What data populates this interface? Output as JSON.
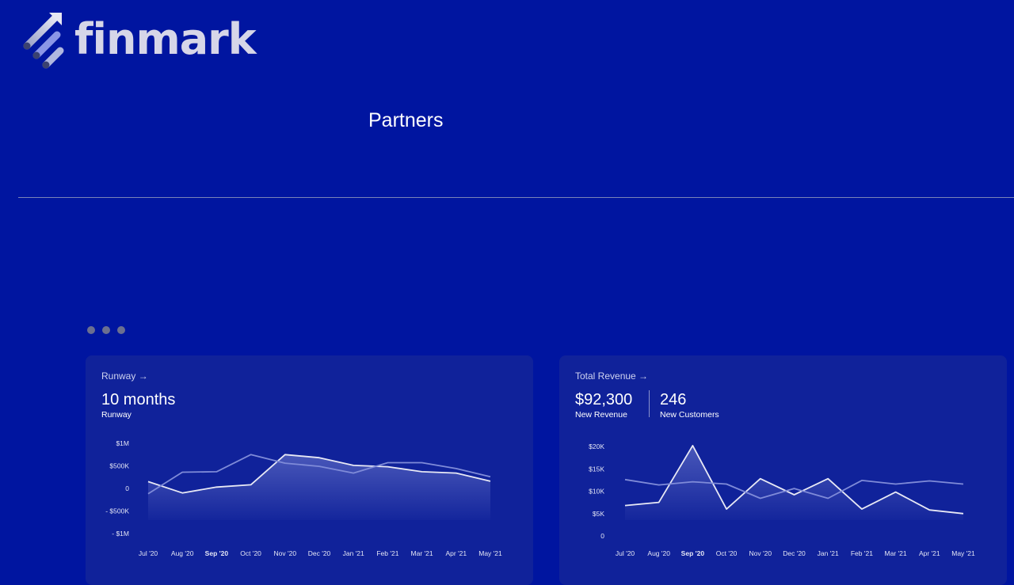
{
  "brand": {
    "name": "finmark"
  },
  "nav": {
    "title": "Partners"
  },
  "cards": {
    "runway": {
      "title": "Runway →",
      "value": "10 months",
      "value_label": "Runway"
    },
    "revenue": {
      "title": "Total Revenue →",
      "revenue_value": "$92,300",
      "revenue_label": "New Revenue",
      "customers_value": "246",
      "customers_label": "New Customers"
    }
  },
  "chart_data": [
    {
      "type": "area",
      "categories": [
        "Jul '20",
        "Aug '20",
        "Sep '20",
        "Oct '20",
        "Nov '20",
        "Dec '20",
        "Jan '21",
        "Feb '21",
        "Mar '21",
        "Apr '21",
        "May '21"
      ],
      "highlight_category": "Sep '20",
      "y_ticks": [
        {
          "label": "$1M",
          "value": 1000000
        },
        {
          "label": "$500K",
          "value": 500000
        },
        {
          "label": "0",
          "value": 0
        },
        {
          "label": "- $500K",
          "value": -500000
        },
        {
          "label": "- $1M",
          "value": -1000000
        }
      ],
      "ylim": [
        -1000000,
        1000000
      ],
      "series": [
        {
          "values": [
            150000,
            -100000,
            30000,
            80000,
            750000,
            680000,
            510000,
            480000,
            370000,
            340000,
            160000
          ],
          "style": "primary-area"
        },
        {
          "values": [
            -120000,
            360000,
            370000,
            750000,
            560000,
            490000,
            340000,
            570000,
            570000,
            440000,
            260000
          ],
          "style": "secondary-line"
        }
      ]
    },
    {
      "type": "area",
      "categories": [
        "Jul '20",
        "Aug '20",
        "Sep '20",
        "Oct '20",
        "Nov '20",
        "Dec '20",
        "Jan '21",
        "Feb '21",
        "Mar '21",
        "Apr '21",
        "May '21"
      ],
      "highlight_category": "Sep '20",
      "y_ticks": [
        {
          "label": "$20K",
          "value": 20000
        },
        {
          "label": "$15K",
          "value": 15000
        },
        {
          "label": "$10K",
          "value": 10000
        },
        {
          "label": "$5K",
          "value": 5000
        },
        {
          "label": "0",
          "value": 0
        }
      ],
      "ylim": [
        0,
        20000
      ],
      "series": [
        {
          "values": [
            6800,
            7500,
            20200,
            6000,
            12800,
            9200,
            12800,
            6000,
            9800,
            5800,
            5000
          ],
          "style": "primary-area"
        },
        {
          "values": [
            12600,
            11400,
            12100,
            11600,
            8400,
            10600,
            8400,
            12400,
            11600,
            12300,
            11600
          ],
          "style": "secondary-line"
        }
      ]
    }
  ],
  "colors": {
    "background": "#0015a0",
    "card": "#10229a",
    "primary_line": "#e8e9f5",
    "secondary_line": "#7f8bd8"
  }
}
